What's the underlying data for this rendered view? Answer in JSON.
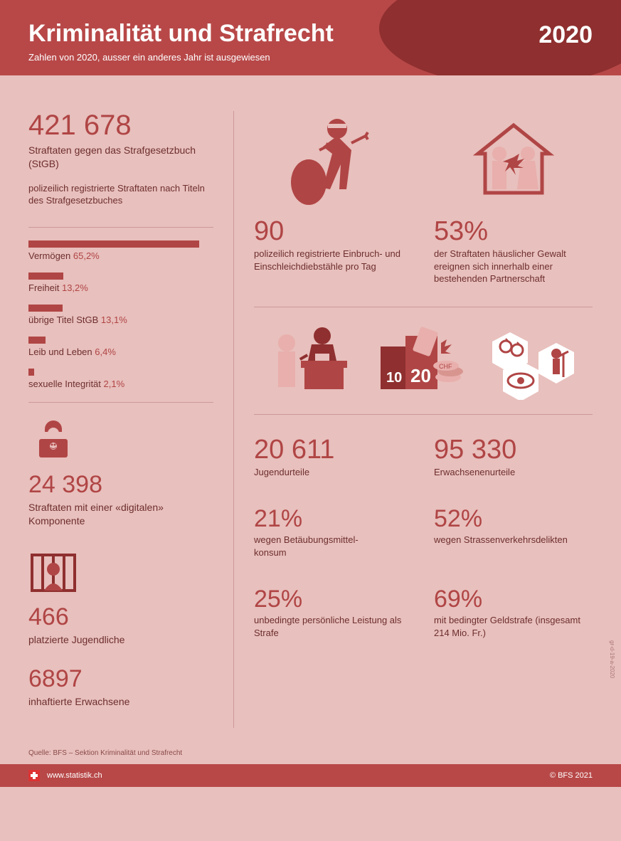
{
  "colors": {
    "header_bg": "#b84848",
    "header_arc": "#8f2f2f",
    "page_bg": "#e8c0bd",
    "accent": "#b04545",
    "text": "#6d2e2e",
    "divider": "#c99",
    "icon_light": "#e8c0bd",
    "icon_dark": "#8f2f2f"
  },
  "header": {
    "title": "Kriminalität und Strafrecht",
    "year": "2020",
    "subtitle": "Zahlen von 2020, ausser ein anderes Jahr ist ausgewiesen"
  },
  "left": {
    "total": {
      "value": "421 678",
      "label": "Straftaten gegen\ndas Strafgesetzbuch (StGB)",
      "sublabel": "polizeilich registrierte Straftaten nach Titeln des Strafgesetzbuches"
    },
    "bars": {
      "max_pct": 65.2,
      "items": [
        {
          "label": "Vermögen",
          "pct": "65,2%",
          "width": 65.2
        },
        {
          "label": "Freiheit",
          "pct": "13,2%",
          "width": 13.2
        },
        {
          "label": "übrige Titel StGB",
          "pct": "13,1%",
          "width": 13.1
        },
        {
          "label": "Leib und Leben",
          "pct": "6,4%",
          "width": 6.4
        },
        {
          "label": "sexuelle Integrität",
          "pct": "2,1%",
          "width": 2.1
        }
      ]
    },
    "digital": {
      "value": "24 398",
      "label": "Straftaten mit einer «digitalen» Komponente"
    },
    "placed": {
      "value": "466",
      "label": "platzierte Jugendliche"
    },
    "inmates": {
      "value": "6897",
      "label": "inhaftierte Erwachsene"
    }
  },
  "right": {
    "burglary": {
      "value": "90",
      "label": "polizeilich registrierte Einbruch- und Einschleichdiebstähle pro Tag"
    },
    "domestic": {
      "value": "53%",
      "label": "der Straftaten häuslicher Gewalt ereignen sich innerhalb einer bestehenden Partnerschaft"
    },
    "youth": {
      "value": "20 611",
      "label": "Jugendurteile",
      "sub1_value": "21%",
      "sub1_label": "wegen Betäubungsmittel-\nkonsum",
      "sub2_value": "25%",
      "sub2_label": "unbedingte persönliche Leistung als Strafe"
    },
    "adult": {
      "value": "95 330",
      "label": "Erwachsenenurteile",
      "sub1_value": "52%",
      "sub1_label": "wegen Strassenverkehrsdelikten",
      "sub2_value": "69%",
      "sub2_label": "mit bedingter Geldstrafe (insgesamt 214 Mio. Fr.)"
    }
  },
  "source": "Quelle: BFS – Sektion Kriminalität und Strafrecht",
  "footer": {
    "url": "www.statistik.ch",
    "copyright": "© BFS 2021"
  },
  "sidecode": "gr-d-19-a-2020"
}
